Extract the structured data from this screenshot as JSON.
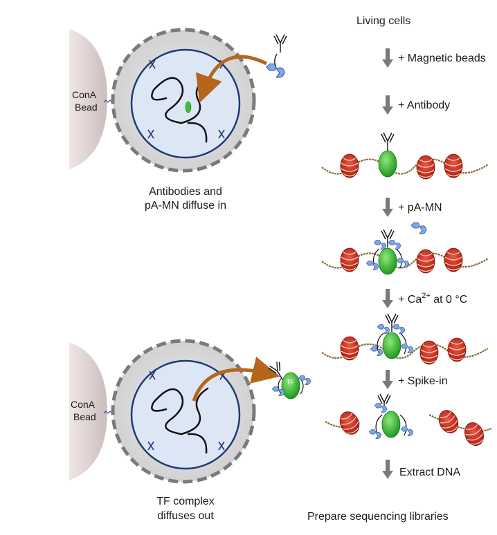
{
  "left_panel": {
    "top": {
      "bead_label_line1": "ConA",
      "bead_label_line2": "Bead",
      "caption_line1": "Antibodies and",
      "caption_line2": "pA-MN diffuse in"
    },
    "bottom": {
      "bead_label_line1": "ConA",
      "bead_label_line2": "Bead",
      "tf_label": "TF",
      "caption_line1": "TF complex",
      "caption_line2": "diffuses out"
    }
  },
  "workflow": {
    "start_label": "Living cells",
    "steps": [
      {
        "label": "+ Magnetic beads"
      },
      {
        "label": "+ Antibody"
      },
      {
        "label": "+ pA-MN"
      },
      {
        "label_prefix": "+ Ca",
        "superscript": "2+",
        "label_suffix": " at 0 °C"
      },
      {
        "label": "+ Spike-in"
      },
      {
        "label": "Extract DNA"
      }
    ],
    "end_label": "Prepare sequencing libraries"
  },
  "colors": {
    "nucleosome": "#c8281e",
    "tf": "#3ec13a",
    "pa_mn": "#7fa6e8",
    "arrow_orange": "#b8651c",
    "bead": "#d9cccc",
    "cell": "#d7d7d7",
    "nucleus": "#dde6f5",
    "membrane": "#1f3a75"
  }
}
